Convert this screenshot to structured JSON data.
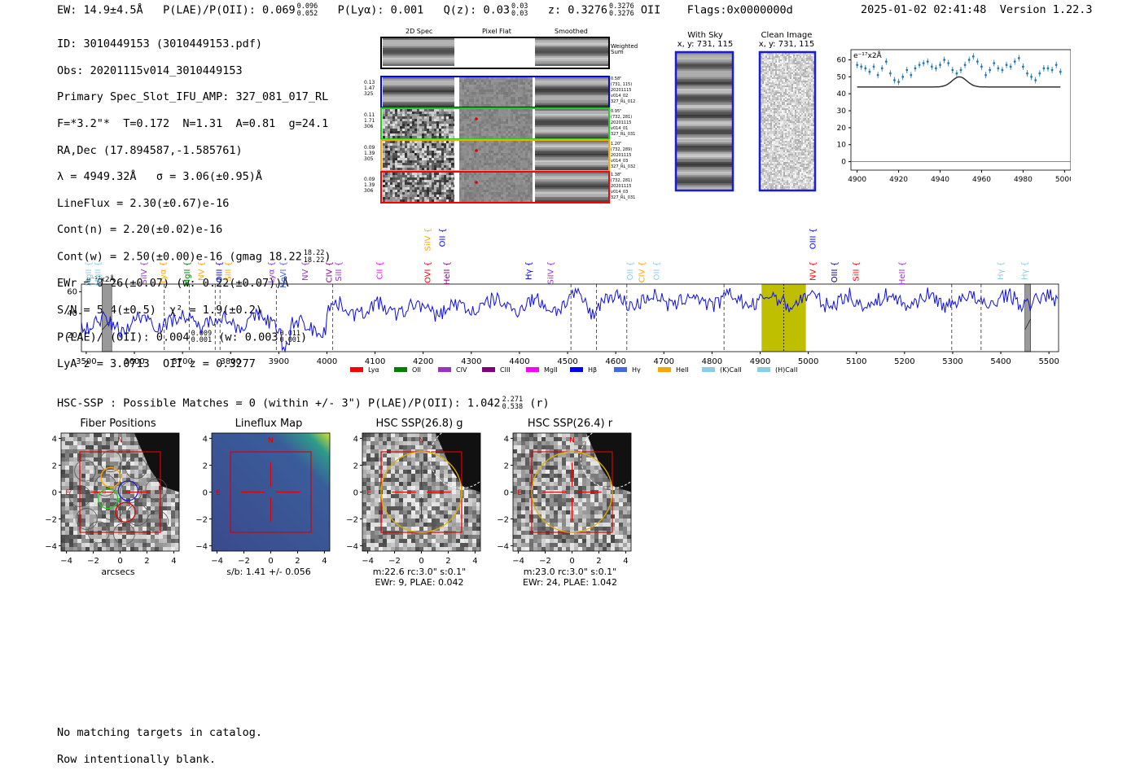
{
  "header": {
    "ew_label": "EW: 14.9±4.5Å",
    "plae_label": "P(LAE)/P(OII): 0.069",
    "plae_hi": "0.096",
    "plae_lo": "0.052",
    "plya_label": "P(Lyα): 0.001",
    "qz_label": "Q(z): 0.03",
    "qz_hi": "0.03",
    "qz_lo": "0.03",
    "z_label": "z: 0.3276",
    "z_hi": "0.3276",
    "z_lo": "0.3276",
    "z_line": "OII",
    "flags": "Flags:0x0000000d",
    "datetime": "2025-01-02 02:41:48",
    "version": "Version 1.22.3"
  },
  "info": {
    "id": "ID: 3010449153 (3010449153.pdf)",
    "obs": "Obs: 20201115v014_3010449153",
    "primary": "Primary Spec_Slot_IFU_AMP: 327_081_017_RL",
    "params": "F=*3.2\"*  T=0.172  N=1.31  A=0.81  g=24.1",
    "radec": "RA,Dec (17.894587,-1.585761)",
    "lambda": "λ = 4949.32Å   σ = 3.06(±0.95)Å",
    "lineflux": "LineFlux = 2.30(±0.67)e-16",
    "contn": "Cont(n) = 2.20(±0.02)e-16",
    "contw": "Cont(w) = 2.50(±0.00)e-16 (gmag 18.22",
    "contw_hi": "18.22",
    "contw_lo": "18.22",
    "contw_end": ")",
    "ewr": "EWr = 0.26(±0.07) (w: 0.22(±0.07))Å",
    "sn": "S/N = 5.4(±0.5)  χ² = 1.9(±0.2)",
    "plae": "P(LAE)/P(OII): 0.004",
    "plae_hi": "0.009",
    "plae_lo": "0.001",
    "plae_w": "(w: 0.003",
    "plae_w_hi": "0.011",
    "plae_w_lo": "0.001",
    "plae_w_end": ")",
    "lya": "LyA z = 3.0713  OII z = 0.3277"
  },
  "cutouts": {
    "col_headers": [
      "2D Spec",
      "Pixel Flat",
      "Smoothed"
    ],
    "weighted_sum": "Weighted\nSum",
    "rows": [
      {
        "left": "0.13\n1.47\n325",
        "right": "0.58\"\n(731, 115)\n20201115\nv014_02\n327_RL_012",
        "color": "#0000ff"
      },
      {
        "left": "0.11\n1.71\n306",
        "right": "0.95\"\n(732, 281)\n20201115\nv014_01\n327_RL_031",
        "color": "#22cc22"
      },
      {
        "left": "0.09\n1.39\n305",
        "right": "1.20\"\n(732, 289)\n20201115\nv014_03\n327_RL_032",
        "color": "#ffa500"
      },
      {
        "left": "0.09\n1.39\n306",
        "right": "1.38\"\n(732, 281)\n20201115\nv014_03\n327_RL_031",
        "color": "#ff0000"
      }
    ]
  },
  "sky": {
    "with_sky_title": "With Sky",
    "with_sky_xy": "x, y: 731, 115",
    "clean_title": "Clean Image",
    "clean_xy": "x, y: 731, 115"
  },
  "zoom_plot": {
    "unit": "e⁻¹⁷x2Å",
    "x_ticks": [
      "4900",
      "4920",
      "4940",
      "4960",
      "4980",
      "5000"
    ],
    "y_ticks": [
      "0",
      "10",
      "20",
      "30",
      "40",
      "50",
      "60"
    ]
  },
  "spectrum": {
    "unit": "e⁻¹⁷x2Å",
    "x_ticks": [
      "3500",
      "3600",
      "3700",
      "3800",
      "3900",
      "4000",
      "4100",
      "4200",
      "4300",
      "4400",
      "4500",
      "4600",
      "4700",
      "4800",
      "4900",
      "5000",
      "5100",
      "5200",
      "5300",
      "5400",
      "5500"
    ],
    "y_ticks": [
      "20",
      "40",
      "60"
    ],
    "line_labels": [
      {
        "t": "MgII",
        "c": "#87ceeb",
        "w": 3510
      },
      {
        "t": "MgII",
        "c": "#87ceeb",
        "w": 3530
      },
      {
        "t": "SiIV",
        "c": "#9932cc",
        "w": 3625
      },
      {
        "t": "Lyα",
        "c": "#ffa500",
        "w": 3665
      },
      {
        "t": "MgII",
        "c": "#008000",
        "w": 3715
      },
      {
        "t": "NV",
        "c": "#ffa500",
        "w": 3745
      },
      {
        "t": "OIII",
        "c": "#0000ff",
        "w": 3782
      },
      {
        "t": "SiII",
        "c": "#ffa500",
        "w": 3800
      },
      {
        "t": "Lyα",
        "c": "#9932cc",
        "w": 3890
      },
      {
        "t": "NeVI",
        "c": "#4169e1",
        "w": 3915
      },
      {
        "t": "NV",
        "c": "#9932cc",
        "w": 3960
      },
      {
        "t": "CIV",
        "c": "#800080",
        "w": 4010
      },
      {
        "t": "SiII",
        "c": "#9932cc",
        "w": 4030
      },
      {
        "t": "CII",
        "c": "#ff00ff",
        "w": 4115
      },
      {
        "t": "OVI",
        "c": "#ff0000",
        "w": 4215
      },
      {
        "t": "HeII",
        "c": "#800080",
        "w": 4255
      },
      {
        "t": "Hγ",
        "c": "#0000ff",
        "w": 4425
      },
      {
        "t": "SiIV",
        "c": "#9932cc",
        "w": 4470
      },
      {
        "t": "OII",
        "c": "#87ceeb",
        "w": 4635
      },
      {
        "t": "CIV",
        "c": "#ffa500",
        "w": 4660
      },
      {
        "t": "OII",
        "c": "#87ceeb",
        "w": 4690
      },
      {
        "t": "NV",
        "c": "#ff0000",
        "w": 5015
      },
      {
        "t": "OIII",
        "c": "#00008b",
        "w": 5060
      },
      {
        "t": "SiII",
        "c": "#ff0000",
        "w": 5105
      },
      {
        "t": "HeII",
        "c": "#9932cc",
        "w": 5200
      },
      {
        "t": "Hγ",
        "c": "#87ceeb",
        "w": 5405
      },
      {
        "t": "Hγ",
        "c": "#87ceeb",
        "w": 5455
      }
    ],
    "upper_labels": [
      {
        "t": "SiIV",
        "c": "#ffa500",
        "w": 4215
      },
      {
        "t": "OII",
        "c": "#0000ff",
        "w": 4245
      },
      {
        "t": "OIII",
        "c": "#0000ff",
        "w": 5015
      }
    ],
    "legend": [
      {
        "t": "Lyα",
        "c": "#ff0000"
      },
      {
        "t": "OII",
        "c": "#008000"
      },
      {
        "t": "CIV",
        "c": "#9932cc"
      },
      {
        "t": "CIII",
        "c": "#800080"
      },
      {
        "t": "MgII",
        "c": "#ff00ff"
      },
      {
        "t": "Hβ",
        "c": "#0000ff"
      },
      {
        "t": "Hγ",
        "c": "#4169e1"
      },
      {
        "t": "HeII",
        "c": "#ffa500"
      },
      {
        "t": "(K)CaII",
        "c": "#87ceeb"
      },
      {
        "t": "(H)CaII",
        "c": "#87ceeb"
      }
    ]
  },
  "hsc": {
    "summary": "HSC-SSP : Possible Matches = 0 (within +/- 3\")  P(LAE)/P(OII): 1.042",
    "summary_hi": "2.271",
    "summary_lo": "0.538",
    "summary_end": "(r)",
    "panels": [
      {
        "title": "Fiber Positions",
        "cap1": "arcsecs",
        "cap2": ""
      },
      {
        "title": "Lineflux Map",
        "cap1": "s/b: 1.41 +/- 0.056",
        "cap2": ""
      },
      {
        "title": "HSC SSP(26.8) g",
        "cap1": "m:22.6 rc:3.0\"  s:0.1\"",
        "cap2": "EWr: 9, PLAE: 0.042"
      },
      {
        "title": "HSC SSP(26.4) r",
        "cap1": "m:23.0 rc:3.0\"  s:0.1\"",
        "cap2": "EWr: 24, PLAE: 1.042"
      }
    ],
    "ticks": [
      "4",
      "2",
      "0",
      "−2",
      "−4"
    ],
    "xticks": [
      "−4",
      "−2",
      "0",
      "2",
      "4"
    ],
    "north": "N",
    "east": "E"
  },
  "footer": {
    "line1": "No matching targets in catalog.",
    "line2": "Row intentionally blank."
  }
}
